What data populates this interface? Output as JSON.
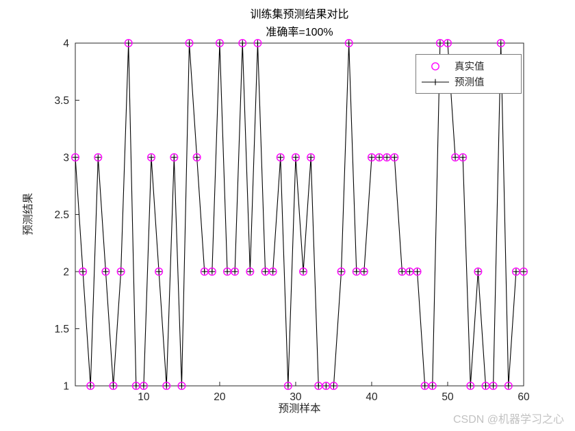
{
  "figure": {
    "watermark": "CSDN @机器学习之心"
  },
  "chart_data": {
    "type": "line",
    "title": "训练集预测结果对比",
    "subtitle": "准确率=100%",
    "xlabel": "预测样本",
    "ylabel": "预测结果",
    "xlim": [
      1,
      60
    ],
    "ylim": [
      1,
      4
    ],
    "x_ticks": [
      10,
      20,
      30,
      40,
      50,
      60
    ],
    "y_ticks": [
      1,
      1.5,
      2,
      2.5,
      3,
      3.5,
      4
    ],
    "grid": false,
    "legend_position": "top-right-inside",
    "x": [
      1,
      2,
      3,
      4,
      5,
      6,
      7,
      8,
      9,
      10,
      11,
      12,
      13,
      14,
      15,
      16,
      17,
      18,
      19,
      20,
      21,
      22,
      23,
      24,
      25,
      26,
      27,
      28,
      29,
      30,
      31,
      32,
      33,
      34,
      35,
      36,
      37,
      38,
      39,
      40,
      41,
      42,
      43,
      44,
      45,
      46,
      47,
      48,
      49,
      50,
      51,
      52,
      53,
      54,
      55,
      56,
      57,
      58,
      59,
      60
    ],
    "series": [
      {
        "name": "真实值",
        "marker": "circle",
        "line": "none",
        "color": "#FF00FF",
        "values": [
          3,
          2,
          1,
          3,
          2,
          1,
          2,
          4,
          1,
          1,
          3,
          2,
          1,
          3,
          1,
          4,
          3,
          2,
          2,
          4,
          2,
          2,
          4,
          2,
          4,
          2,
          2,
          3,
          1,
          3,
          2,
          3,
          1,
          1,
          1,
          2,
          4,
          2,
          2,
          3,
          3,
          3,
          3,
          2,
          2,
          2,
          1,
          1,
          4,
          4,
          3,
          3,
          1,
          2,
          1,
          1,
          4,
          1,
          2,
          2
        ]
      },
      {
        "name": "预测值",
        "marker": "plus",
        "line": "solid",
        "color": "#000000",
        "values": [
          3,
          2,
          1,
          3,
          2,
          1,
          2,
          4,
          1,
          1,
          3,
          2,
          1,
          3,
          1,
          4,
          3,
          2,
          2,
          4,
          2,
          2,
          4,
          2,
          4,
          2,
          2,
          3,
          1,
          3,
          2,
          3,
          1,
          1,
          1,
          2,
          4,
          2,
          2,
          3,
          3,
          3,
          3,
          2,
          2,
          2,
          1,
          1,
          4,
          4,
          3,
          3,
          1,
          2,
          1,
          1,
          4,
          1,
          2,
          2
        ]
      }
    ]
  },
  "colors": {
    "axes": "#262626",
    "true_series": "#FF00FF",
    "pred_series": "#000000",
    "watermark": "#c2c2c2",
    "legend_border": "#7a7a7a"
  }
}
